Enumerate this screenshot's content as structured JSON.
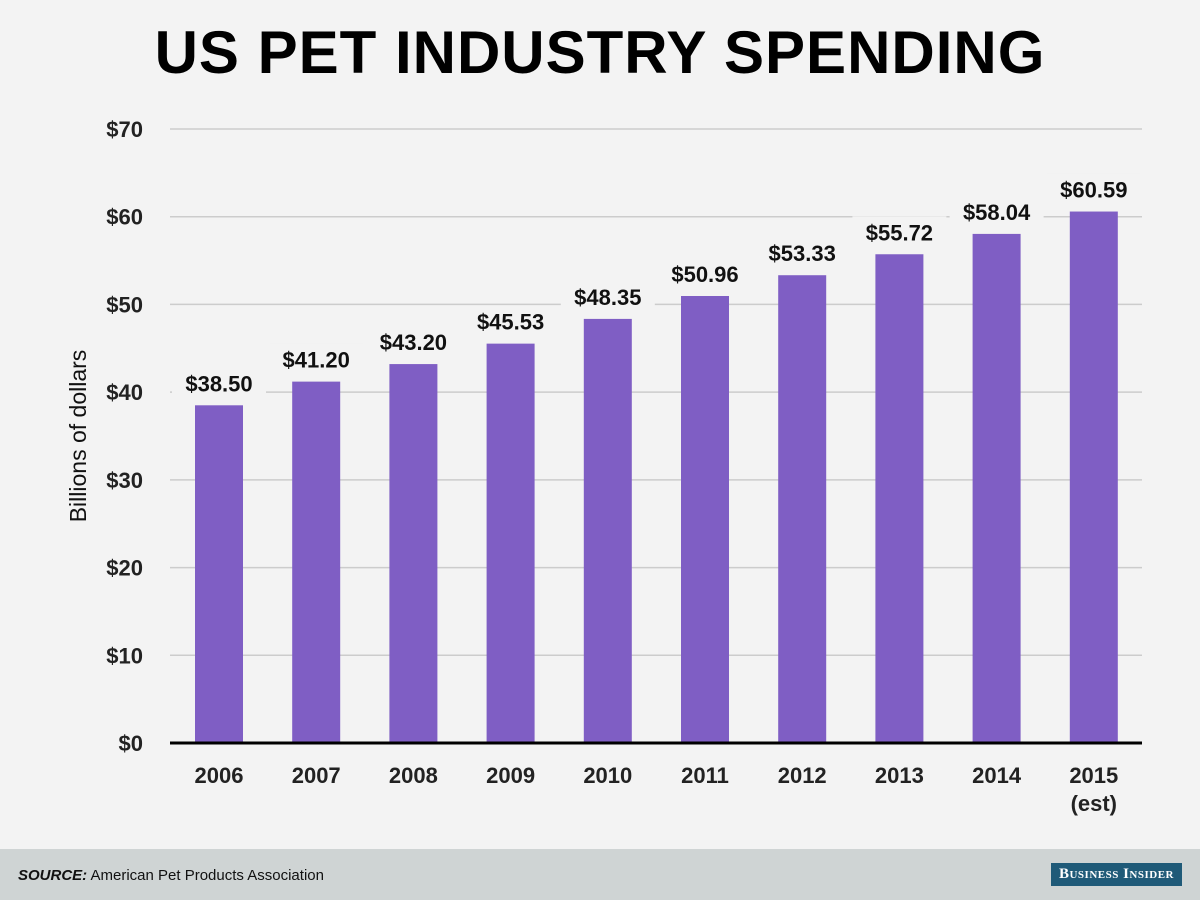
{
  "chart_data": {
    "type": "bar",
    "title": "US PET INDUSTRY SPENDING",
    "xlabel": "",
    "ylabel": "Billions of dollars",
    "categories": [
      "2006",
      "2007",
      "2008",
      "2009",
      "2010",
      "2011",
      "2012",
      "2013",
      "2014",
      "2015\n(est)"
    ],
    "values": [
      38.5,
      41.2,
      43.2,
      45.53,
      48.35,
      50.96,
      53.33,
      55.72,
      58.04,
      60.59
    ],
    "data_labels": [
      "$38.50",
      "$41.20",
      "$43.20",
      "$45.53",
      "$48.35",
      "$50.96",
      "$53.33",
      "$55.72",
      "$58.04",
      "$60.59"
    ],
    "ylim": [
      0,
      70
    ],
    "yticks": [
      0,
      10,
      20,
      30,
      40,
      50,
      60,
      70
    ],
    "ytick_labels": [
      "$0",
      "$10",
      "$20",
      "$30",
      "$40",
      "$50",
      "$60",
      "$70"
    ],
    "grid": true,
    "bar_color": "#7f5ec4"
  },
  "footer": {
    "source_label": "SOURCE:",
    "source_text": "American Pet Products Association",
    "logo": "Business Insider"
  }
}
